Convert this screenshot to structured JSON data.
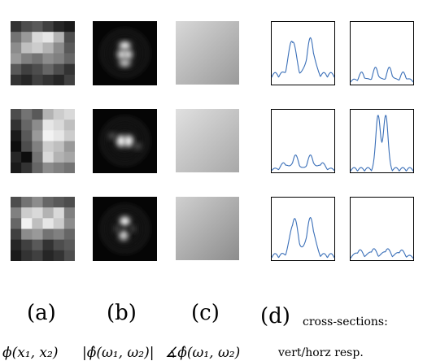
{
  "labels": {
    "a": "(a)",
    "b": "(b)",
    "c": "(c)",
    "d": "(d)",
    "d_caption_1": "cross-sections:",
    "d_caption_2": "vert/horz resp.",
    "formula_a": "ϕ(x₁, x₂)",
    "formula_b": "|ϕ̂(ω₁, ω₂)|",
    "formula_c": "∡ϕ̂(ω₁, ω₂)"
  },
  "colors": {
    "curve": "#3a6fb8",
    "frame": "#000000"
  },
  "patches": [
    [
      [
        0.2,
        0.3,
        0.35,
        0.25,
        0.15,
        0.1
      ],
      [
        0.45,
        0.6,
        0.85,
        0.9,
        0.7,
        0.3
      ],
      [
        0.55,
        0.75,
        0.8,
        0.7,
        0.55,
        0.35
      ],
      [
        0.6,
        0.5,
        0.45,
        0.55,
        0.5,
        0.4
      ],
      [
        0.35,
        0.25,
        0.3,
        0.4,
        0.3,
        0.2
      ],
      [
        0.2,
        0.15,
        0.25,
        0.2,
        0.15,
        0.25
      ]
    ],
    [
      [
        0.3,
        0.45,
        0.35,
        0.7,
        0.8,
        0.85
      ],
      [
        0.2,
        0.4,
        0.55,
        0.9,
        0.85,
        0.75
      ],
      [
        0.1,
        0.35,
        0.6,
        0.95,
        0.9,
        0.8
      ],
      [
        0.05,
        0.3,
        0.5,
        0.8,
        0.75,
        0.6
      ],
      [
        0.15,
        0.05,
        0.45,
        0.85,
        0.7,
        0.65
      ],
      [
        0.1,
        0.2,
        0.4,
        0.55,
        0.5,
        0.45
      ]
    ],
    [
      [
        0.3,
        0.45,
        0.55,
        0.4,
        0.35,
        0.3
      ],
      [
        0.5,
        0.8,
        0.85,
        0.7,
        0.85,
        0.5
      ],
      [
        0.4,
        0.95,
        0.75,
        0.9,
        0.8,
        0.55
      ],
      [
        0.25,
        0.55,
        0.6,
        0.45,
        0.5,
        0.4
      ],
      [
        0.15,
        0.25,
        0.35,
        0.2,
        0.3,
        0.35
      ],
      [
        0.1,
        0.2,
        0.25,
        0.15,
        0.2,
        0.3
      ]
    ]
  ]
}
